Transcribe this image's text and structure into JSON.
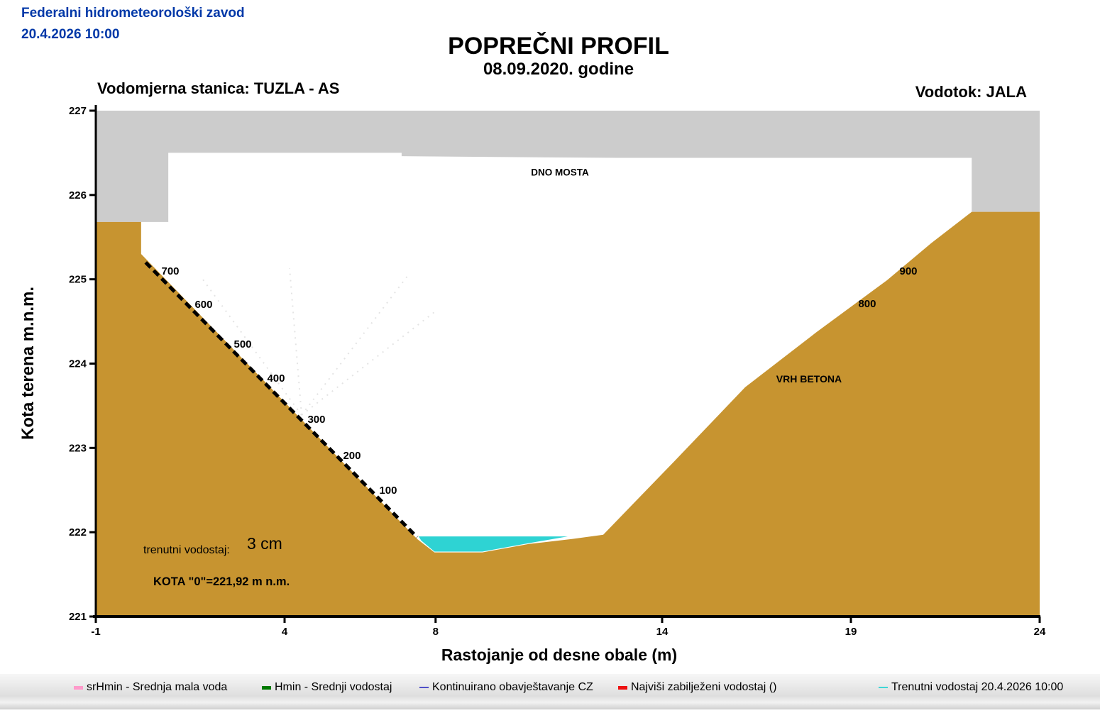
{
  "header": {
    "org": "Federalni hidrometeorološki zavod",
    "datetime": "20.4.2026 10:00"
  },
  "title": "POPREČNI PROFIL",
  "subtitle": "08.09.2020. godine",
  "station_label": "Vodomjerna stanica: TUZLA - AS",
  "river_label": "Vodotok: JALA",
  "colors": {
    "terrain": "#C79430",
    "bridge": "#CCCCCC",
    "water": "#2ED3D3",
    "header_blue": "#0038A8",
    "axis": "#000000"
  },
  "chart_data": {
    "type": "area",
    "x_axis": {
      "label": "Rastojanje od desne obale (m)",
      "range": [
        -1,
        24
      ],
      "ticks": [
        -1,
        4,
        8,
        14,
        19,
        24
      ]
    },
    "y_axis": {
      "label": "Kota terena m.n.m.",
      "range": [
        221,
        227
      ],
      "ticks": [
        221,
        222,
        223,
        224,
        225,
        226,
        227
      ]
    },
    "terrain_profile": [
      [
        -1.0,
        225.68
      ],
      [
        0.2,
        225.68
      ],
      [
        0.2,
        225.3
      ],
      [
        7.51,
        221.92
      ],
      [
        7.97,
        221.76
      ],
      [
        9.24,
        221.76
      ],
      [
        10.47,
        221.86
      ],
      [
        11.63,
        221.92
      ],
      [
        12.44,
        221.97
      ],
      [
        14.32,
        222.84
      ],
      [
        16.2,
        223.72
      ],
      [
        18.08,
        224.37
      ],
      [
        19.96,
        224.99
      ],
      [
        21.13,
        225.43
      ],
      [
        22.2,
        225.8
      ],
      [
        24.0,
        225.8
      ]
    ],
    "bridge": {
      "deck_top_elev": 227.0,
      "deck_bottom_segments": [
        {
          "x_from": 0.92,
          "x_to": 7.1,
          "elev": 226.5
        },
        {
          "x_from": 7.1,
          "x_to": 12.82,
          "elev": 226.46
        },
        {
          "x_from": 12.82,
          "x_to": 22.2,
          "elev": 226.44
        }
      ],
      "left_abutment": {
        "x_from": -1.0,
        "x_to": 0.92,
        "base_elev": 225.68
      },
      "right_abutment": {
        "x_from": 22.2,
        "x_to": 24.0,
        "base_elev": 225.8
      },
      "underside_label": "DNO MOSTA"
    },
    "water": {
      "surface_elev": 221.95,
      "polygon": [
        [
          7.55,
          221.95
        ],
        [
          11.5,
          221.95
        ],
        [
          10.47,
          221.87
        ],
        [
          9.24,
          221.77
        ],
        [
          7.97,
          221.77
        ],
        [
          7.62,
          221.9
        ]
      ]
    },
    "staff_gauge": {
      "line": [
        [
          0.32,
          225.2
        ],
        [
          7.51,
          221.94
        ]
      ],
      "labels": [
        {
          "value": "100",
          "x": 6.744,
          "elev": 222.498
        },
        {
          "value": "200",
          "x": 5.785,
          "elev": 222.911
        },
        {
          "value": "300",
          "x": 4.845,
          "elev": 223.34
        },
        {
          "value": "400",
          "x": 3.774,
          "elev": 223.828
        },
        {
          "value": "500",
          "x": 2.891,
          "elev": 224.232
        },
        {
          "value": "600",
          "x": 1.857,
          "elev": 224.703
        },
        {
          "value": "700",
          "x": 0.974,
          "elev": 225.098
        },
        {
          "value": "800",
          "x": 19.432,
          "elev": 224.711
        },
        {
          "value": "900",
          "x": 20.523,
          "elev": 225.098
        }
      ]
    },
    "annotations": [
      {
        "id": "dno-mosta",
        "text": "DNO MOSTA",
        "x": 11.293,
        "elev": 226.27
      },
      {
        "id": "vrh-betona",
        "text": "VRH BETONA",
        "x": 17.89,
        "elev": 223.82
      }
    ],
    "current_stage": {
      "label": "trenutni vodostaj:",
      "value": "3 cm"
    },
    "datum_label": "KOTA \"0\"=221,92 m n.m."
  },
  "legend": {
    "items": [
      {
        "label": "srHmin - Srednja mala voda",
        "color": "#FF9ACB",
        "thickness": 5
      },
      {
        "label": "Hmin - Srednji vodostaj",
        "color": "#007A00",
        "thickness": 5
      },
      {
        "label": "Kontinuirano obavještavanje CZ",
        "color": "#5050C8",
        "thickness": 2
      },
      {
        "label": "Najviši zabilježeni vodostaj ()",
        "color": "#EE1111",
        "thickness": 5
      },
      {
        "label": "Trenutni vodostaj 20.4.2026 10:00",
        "color": "#3FD6D6",
        "thickness": 2
      }
    ]
  }
}
